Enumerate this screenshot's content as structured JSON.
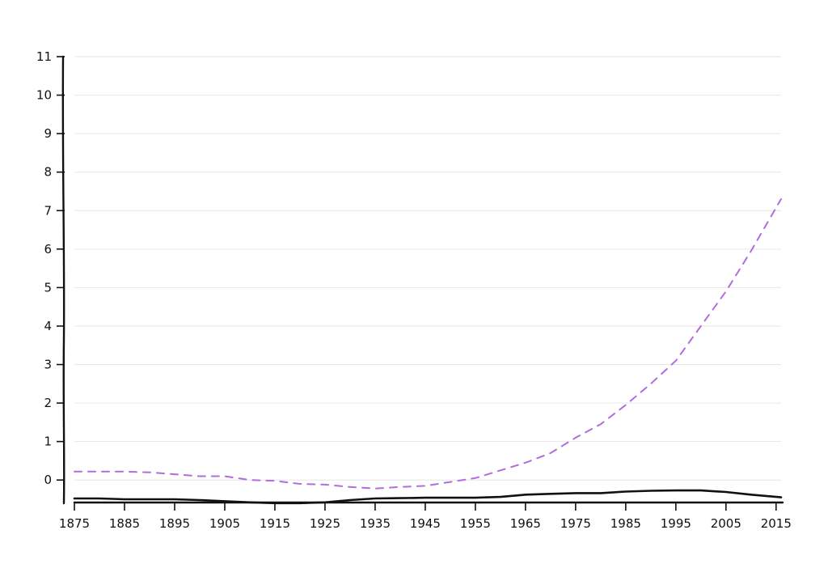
{
  "chart_data": {
    "type": "line",
    "title": "",
    "xlabel": "",
    "ylabel": "",
    "xlim": [
      1875,
      2016
    ],
    "ylim": [
      -0.5,
      11
    ],
    "grid": true,
    "x_ticks": [
      "1875",
      "1885",
      "1895",
      "1905",
      "1915",
      "1925",
      "1935",
      "1945",
      "1955",
      "1965",
      "1975",
      "1985",
      "1995",
      "2005",
      "2015"
    ],
    "y_ticks": [
      "0",
      "1",
      "2",
      "3",
      "4",
      "5",
      "6",
      "7",
      "8",
      "9",
      "10",
      "11"
    ],
    "series": [
      {
        "style": "dashed",
        "color": "#b36be0",
        "x": [
          1875,
          1880,
          1885,
          1890,
          1895,
          1900,
          1905,
          1910,
          1915,
          1920,
          1925,
          1930,
          1935,
          1940,
          1945,
          1950,
          1955,
          1960,
          1965,
          1970,
          1975,
          1980,
          1985,
          1990,
          1995,
          2000,
          2005,
          2010,
          2016
        ],
        "y": [
          0.22,
          0.22,
          0.22,
          0.2,
          0.15,
          0.1,
          0.1,
          0.0,
          -0.02,
          -0.1,
          -0.12,
          -0.18,
          -0.22,
          -0.18,
          -0.15,
          -0.05,
          0.05,
          0.25,
          0.45,
          0.7,
          1.1,
          1.45,
          1.95,
          2.5,
          3.1,
          4.0,
          4.9,
          5.95,
          7.3
        ]
      },
      {
        "style": "solid",
        "color": "#111111",
        "x": [
          1875,
          1880,
          1885,
          1890,
          1895,
          1900,
          1905,
          1910,
          1915,
          1920,
          1925,
          1930,
          1935,
          1940,
          1945,
          1950,
          1955,
          1960,
          1965,
          1970,
          1975,
          1980,
          1985,
          1990,
          1995,
          2000,
          2005,
          2010,
          2016
        ],
        "y": [
          -0.48,
          -0.48,
          -0.5,
          -0.5,
          -0.5,
          -0.52,
          -0.55,
          -0.58,
          -0.6,
          -0.6,
          -0.58,
          -0.52,
          -0.48,
          -0.47,
          -0.46,
          -0.46,
          -0.46,
          -0.44,
          -0.38,
          -0.36,
          -0.34,
          -0.34,
          -0.3,
          -0.28,
          -0.27,
          -0.27,
          -0.31,
          -0.38,
          -0.45
        ]
      }
    ]
  }
}
